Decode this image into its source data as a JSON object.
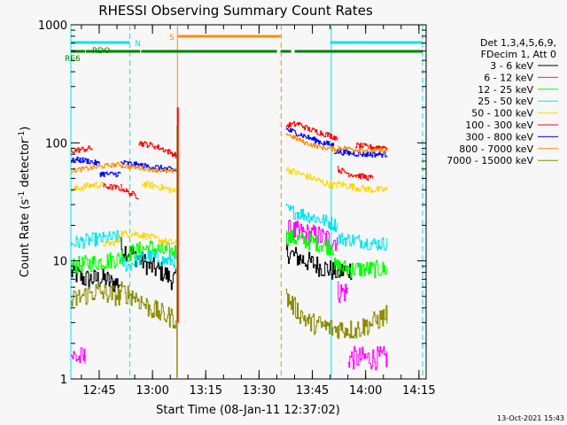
{
  "chart_data": {
    "type": "line",
    "title": "RHESSI Observing Summary Count Rates",
    "xlabel": "Start Time (08-Jan-11 12:37:02)",
    "ylabel_main": "Count Rate (s",
    "ylabel_sup1": "-1",
    "ylabel_mid": " detector",
    "ylabel_sup2": "-1",
    "ylabel_end": ")",
    "yscale": "log",
    "ylim": [
      1,
      1000
    ],
    "xlim_minutes": [
      0,
      100
    ],
    "x_ticks": [
      {
        "label": "12:45",
        "t": 7.97
      },
      {
        "label": "13:00",
        "t": 22.97
      },
      {
        "label": "13:15",
        "t": 37.97
      },
      {
        "label": "13:30",
        "t": 52.97
      },
      {
        "label": "13:45",
        "t": 67.97
      },
      {
        "label": "14:00",
        "t": 82.97
      },
      {
        "label": "14:15",
        "t": 97.97
      }
    ],
    "y_ticks": [
      {
        "label": "1",
        "v": 1
      },
      {
        "label": "10",
        "v": 10
      },
      {
        "label": "100",
        "v": 100
      },
      {
        "label": "1000",
        "v": 1000
      }
    ],
    "legend": {
      "header1": "Det 1,3,4,5,6,9,",
      "header2": "FDecim 1, Att 0",
      "placement": "right"
    },
    "flags": [
      {
        "label": "N",
        "color": "#00e5ee",
        "segments": [
          [
            0,
            16.5
          ],
          [
            73,
            99
          ]
        ],
        "level": 3
      },
      {
        "label": "S",
        "color": "#ff8c00",
        "segments": [
          [
            30.2,
            59
          ]
        ],
        "level": 1
      },
      {
        "label": "RDO",
        "color": "#008000",
        "segments": [
          [
            0,
            4
          ],
          [
            6,
            19.5
          ]
        ],
        "level": 2
      },
      {
        "label": "RE6",
        "color": "#008000",
        "segments": [
          [
            4.2,
            19
          ],
          [
            19.8,
            58
          ],
          [
            59,
            62
          ],
          [
            63,
            99
          ]
        ],
        "level": 4
      }
    ],
    "vlines": [
      {
        "t": 0,
        "color": "#00e5ee",
        "style": "solid"
      },
      {
        "t": 16.6,
        "color": "#00e5ee",
        "style": "dashed"
      },
      {
        "t": 30.0,
        "color": "#ff8c00",
        "style": "solid"
      },
      {
        "t": 59.2,
        "color": "#ff8c00",
        "style": "dashed"
      },
      {
        "t": 73.3,
        "color": "#00e5ee",
        "style": "solid"
      },
      {
        "t": 99.0,
        "color": "#00e5ee",
        "style": "dashed"
      }
    ],
    "series": [
      {
        "name": "3 - 6 keV",
        "color": "#000000",
        "noise": 0.18,
        "segs": [
          [
            [
              0,
              8
            ],
            [
              4,
              7
            ],
            [
              10,
              7
            ],
            [
              11,
              6.5
            ],
            [
              14,
              6.5
            ]
          ],
          [
            [
              14,
              13
            ],
            [
              18,
              11
            ],
            [
              22,
              9
            ],
            [
              26,
              8
            ],
            [
              28,
              7
            ],
            [
              29.5,
              7
            ]
          ],
          [
            [
              60.5,
              12
            ],
            [
              63,
              11
            ],
            [
              66,
              10
            ],
            [
              70,
              9
            ],
            [
              75,
              8
            ],
            [
              79,
              8.5
            ]
          ]
        ]
      },
      {
        "name": "6 - 12 keV",
        "color": "#ff00ff",
        "noise": 0.2,
        "segs": [
          [
            [
              0,
              1.6
            ],
            [
              2,
              1.5
            ],
            [
              4,
              1.5
            ]
          ],
          [
            [
              60.5,
              18
            ],
            [
              65,
              17
            ],
            [
              70,
              16
            ],
            [
              73,
              15
            ],
            [
              75,
              15
            ]
          ],
          [
            [
              75,
              5.5
            ],
            [
              78,
              5.5
            ]
          ],
          [
            [
              78,
              1.5
            ],
            [
              82,
              1.5
            ],
            [
              86,
              1.5
            ],
            [
              89,
              1.5
            ]
          ]
        ]
      },
      {
        "name": "12 - 25 keV",
        "color": "#00ff00",
        "noise": 0.15,
        "segs": [
          [
            [
              0,
              9
            ],
            [
              5,
              9.5
            ],
            [
              10,
              10
            ],
            [
              14,
              10.5
            ]
          ],
          [
            [
              14,
              11
            ],
            [
              18,
              12
            ],
            [
              22,
              13
            ],
            [
              26,
              12
            ],
            [
              30,
              12
            ]
          ],
          [
            [
              60.5,
              16
            ],
            [
              65,
              15
            ],
            [
              70,
              14
            ],
            [
              74,
              13
            ]
          ],
          [
            [
              74,
              9
            ],
            [
              79,
              8.5
            ]
          ],
          [
            [
              79,
              8.5
            ],
            [
              85,
              8.5
            ],
            [
              89,
              8.5
            ]
          ]
        ]
      },
      {
        "name": "25 - 50 keV",
        "color": "#00e5ee",
        "noise": 0.12,
        "segs": [
          [
            [
              0,
              14
            ],
            [
              5,
              15
            ],
            [
              10,
              15.5
            ],
            [
              14,
              16
            ]
          ],
          [
            [
              14,
              10
            ],
            [
              16,
              9
            ],
            [
              18,
              10
            ],
            [
              22,
              11
            ],
            [
              26,
              10
            ],
            [
              30,
              10
            ]
          ],
          [
            [
              60.5,
              27
            ],
            [
              65,
              25
            ],
            [
              69,
              23
            ],
            [
              73,
              21
            ],
            [
              75,
              20
            ]
          ],
          [
            [
              75,
              15.5
            ],
            [
              80,
              15
            ],
            [
              85,
              14
            ],
            [
              89,
              14
            ]
          ]
        ]
      },
      {
        "name": "50 - 100 keV",
        "color": "#ffd700",
        "noise": 0.06,
        "segs": [
          [
            [
              0,
              40
            ],
            [
              3,
              42
            ],
            [
              6,
              44
            ],
            [
              9,
              44
            ]
          ],
          [
            [
              9,
              14
            ],
            [
              11,
              14
            ],
            [
              14,
              15
            ]
          ],
          [
            [
              14,
              17
            ],
            [
              18,
              17
            ],
            [
              22,
              16
            ],
            [
              25,
              15
            ],
            [
              27,
              14.5
            ],
            [
              30,
              14
            ]
          ],
          [
            [
              20,
              45
            ],
            [
              24,
              43
            ],
            [
              28,
              40
            ],
            [
              30,
              38
            ]
          ],
          [
            [
              60.5,
              60
            ],
            [
              64,
              55
            ],
            [
              68,
              50
            ],
            [
              72,
              45
            ],
            [
              75,
              43
            ]
          ],
          [
            [
              75,
              45
            ],
            [
              80,
              42
            ],
            [
              85,
              40
            ],
            [
              89,
              40
            ]
          ]
        ]
      },
      {
        "name": "100 - 300 keV",
        "color": "#ff0000",
        "noise": 0.05,
        "segs": [
          [
            [
              0,
              85
            ],
            [
              3,
              88
            ],
            [
              6,
              90
            ]
          ],
          [
            [
              9,
              43
            ],
            [
              12,
              42
            ],
            [
              14,
              41
            ]
          ],
          [
            [
              14,
              42
            ],
            [
              16,
              38
            ],
            [
              19,
              35
            ]
          ],
          [
            [
              19,
              100
            ],
            [
              23,
              95
            ],
            [
              26,
              88
            ],
            [
              29,
              80
            ],
            [
              30,
              78
            ]
          ],
          [
            [
              60.5,
              140
            ],
            [
              64,
              145
            ],
            [
              67,
              130
            ],
            [
              71,
              120
            ],
            [
              75,
              110
            ]
          ],
          [
            [
              75,
              60
            ],
            [
              78,
              55
            ],
            [
              82,
              52
            ],
            [
              85,
              50
            ]
          ],
          [
            [
              80,
              95
            ],
            [
              84,
              92
            ],
            [
              89,
              92
            ]
          ]
        ]
      },
      {
        "name": "300 - 800 keV",
        "color": "#0000ff",
        "noise": 0.05,
        "segs": [
          [
            [
              0,
              70
            ],
            [
              2,
              72
            ],
            [
              5,
              70
            ],
            [
              8,
              66
            ]
          ],
          [
            [
              8,
              55
            ],
            [
              11,
              54
            ],
            [
              14,
              55
            ]
          ],
          [
            [
              14,
              68
            ],
            [
              17,
              66
            ],
            [
              20,
              64
            ],
            [
              24,
              62
            ],
            [
              27,
              60
            ],
            [
              30,
              58
            ]
          ],
          [
            [
              60.5,
              130
            ],
            [
              64,
              120
            ],
            [
              67,
              110
            ],
            [
              71,
              100
            ],
            [
              74,
              95
            ]
          ],
          [
            [
              74,
              85
            ],
            [
              78,
              82
            ],
            [
              83,
              80
            ],
            [
              89,
              80
            ]
          ]
        ]
      },
      {
        "name": "800 - 7000 keV",
        "color": "#ff8c00",
        "noise": 0.04,
        "segs": [
          [
            [
              0,
              58
            ],
            [
              3,
              60
            ],
            [
              7,
              62
            ],
            [
              10,
              64
            ],
            [
              14,
              66
            ]
          ],
          [
            [
              14,
              64
            ],
            [
              18,
              62
            ],
            [
              22,
              60
            ],
            [
              26,
              58
            ],
            [
              28,
              57
            ],
            [
              29.5,
              58
            ]
          ],
          [
            [
              60.5,
              120
            ],
            [
              63,
              110
            ],
            [
              66,
              100
            ],
            [
              70,
              92
            ],
            [
              75,
              88
            ]
          ],
          [
            [
              75,
              92
            ],
            [
              80,
              88
            ],
            [
              85,
              86
            ],
            [
              89,
              86
            ]
          ]
        ]
      },
      {
        "name": "7000 - 15000 keV",
        "color": "#8b8b00",
        "noise": 0.18,
        "segs": [
          [
            [
              0,
              4.5
            ],
            [
              3,
              5
            ],
            [
              7,
              5.5
            ],
            [
              11,
              5.2
            ],
            [
              14,
              5
            ]
          ],
          [
            [
              14,
              5.5
            ],
            [
              18,
              5
            ],
            [
              22,
              4
            ],
            [
              26,
              3.5
            ],
            [
              29.5,
              3.2
            ]
          ],
          [
            [
              60.5,
              5
            ],
            [
              63,
              4
            ],
            [
              67,
              3
            ],
            [
              71,
              2.8
            ],
            [
              75,
              2.6
            ]
          ],
          [
            [
              75,
              2.7
            ],
            [
              80,
              2.6
            ],
            [
              85,
              3
            ],
            [
              89,
              3.5
            ]
          ]
        ]
      }
    ],
    "spike": {
      "t": 30.1,
      "color": "#ff0000",
      "top": 200
    },
    "timestamp": "13-Oct-2021 15:43"
  }
}
